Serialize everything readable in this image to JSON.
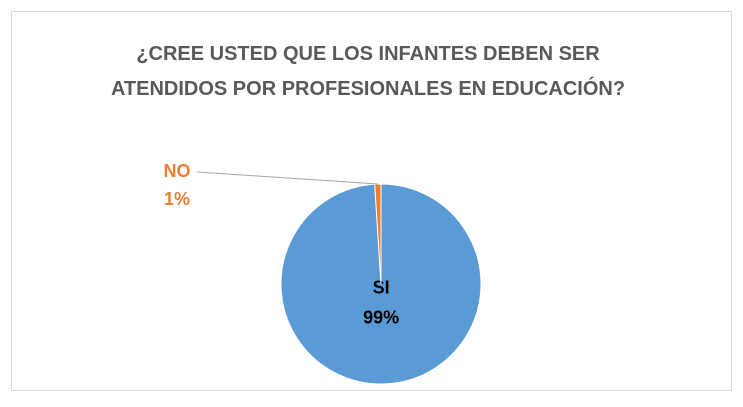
{
  "chart_data": {
    "type": "pie",
    "title": "¿CREE USTED QUE LOS INFANTES DEBEN SER ATENDIDOS POR PROFESIONALES EN EDUCACIÓN?",
    "categories": [
      "SI",
      "NO"
    ],
    "values": [
      99,
      1
    ],
    "value_labels": [
      "99%",
      "1%"
    ],
    "colors": [
      "#5b9bd5",
      "#ed7d31"
    ]
  }
}
